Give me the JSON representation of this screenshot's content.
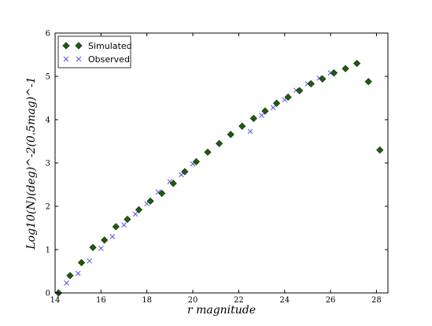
{
  "chart_data": {
    "type": "scatter",
    "title": "",
    "xlabel": "r magnitude",
    "ylabel": "Log10(N)(deg)^-2(0.5mag)^-1",
    "xlim": [
      14,
      28.5
    ],
    "ylim": [
      0,
      6
    ],
    "x_ticks": [
      "14",
      "16",
      "18",
      "20",
      "22",
      "24",
      "26",
      "28"
    ],
    "y_ticks": [
      "0",
      "1",
      "2",
      "3",
      "4",
      "5",
      "6"
    ],
    "grid": false,
    "legend_position": "top-left",
    "series": [
      {
        "name": "Simulated",
        "marker": "diamond",
        "color": "#1f5c12",
        "x": [
          14.15,
          14.65,
          15.15,
          15.65,
          16.15,
          16.65,
          17.15,
          17.65,
          18.15,
          18.65,
          19.15,
          19.65,
          20.15,
          20.65,
          21.15,
          21.65,
          22.15,
          22.65,
          23.15,
          23.65,
          24.15,
          24.65,
          25.15,
          25.65,
          26.15,
          26.65,
          27.15,
          27.65,
          28.15
        ],
        "y": [
          0.0,
          0.4,
          0.7,
          1.05,
          1.22,
          1.53,
          1.7,
          1.92,
          2.12,
          2.3,
          2.53,
          2.8,
          3.03,
          3.25,
          3.45,
          3.66,
          3.85,
          4.03,
          4.2,
          4.38,
          4.52,
          4.67,
          4.83,
          4.94,
          5.08,
          5.18,
          5.3,
          4.88,
          3.3
        ]
      },
      {
        "name": "Observed",
        "marker": "x",
        "color": "#5555e6",
        "x": [
          14.5,
          15.0,
          15.5,
          16.0,
          16.5,
          17.0,
          17.5,
          18.0,
          18.5,
          19.0,
          19.5,
          20.0,
          22.5,
          23.0,
          23.5,
          24.0,
          24.5,
          25.0,
          25.5,
          26.0
        ],
        "y": [
          0.23,
          0.45,
          0.74,
          1.03,
          1.3,
          1.57,
          1.82,
          2.06,
          2.33,
          2.57,
          2.73,
          2.98,
          3.73,
          4.1,
          4.28,
          4.46,
          4.68,
          4.83,
          4.96,
          5.08
        ]
      }
    ]
  }
}
